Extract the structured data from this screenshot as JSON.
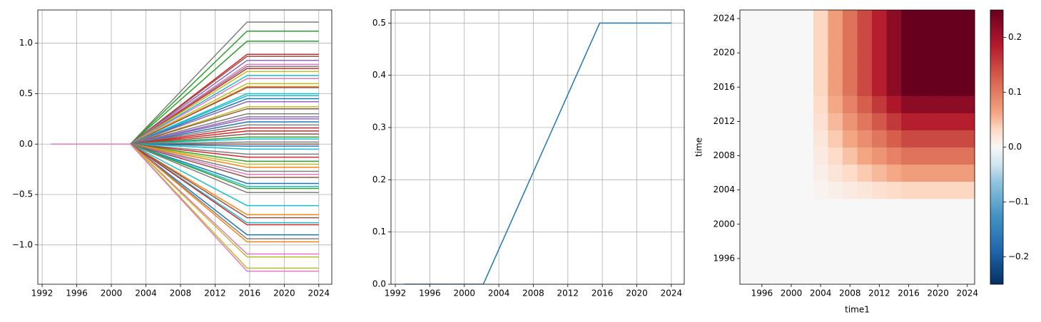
{
  "chart_data": [
    {
      "type": "line",
      "x": [
        1993,
        2002.2,
        2015.7,
        2024
      ],
      "xlim": [
        1991.5,
        2025.5
      ],
      "ylim": [
        -1.39,
        1.33
      ],
      "xticks": [
        1992,
        1996,
        2000,
        2004,
        2008,
        2012,
        2016,
        2020,
        2024
      ],
      "yticks": [
        {
          "value": -1.0,
          "label": "−1.0"
        },
        {
          "value": -0.5,
          "label": "−0.5"
        },
        {
          "value": 0,
          "label": "0.0"
        },
        {
          "value": 0.5,
          "label": "0.5"
        },
        {
          "value": 1.0,
          "label": "1.0"
        }
      ],
      "grid": true,
      "series": [
        {
          "color": "#7f7f7f",
          "values": [
            0,
            0,
            1.21,
            1.21
          ]
        },
        {
          "color": "#2ca02c",
          "values": [
            0,
            0,
            1.12,
            1.12
          ]
        },
        {
          "color": "#2ca02c",
          "values": [
            0,
            0,
            1.02,
            1.02
          ]
        },
        {
          "color": "#d62728",
          "values": [
            0,
            0,
            0.89,
            0.89
          ]
        },
        {
          "color": "#8c564b",
          "values": [
            0,
            0,
            0.87,
            0.87
          ]
        },
        {
          "color": "#9467bd",
          "values": [
            0,
            0,
            0.83,
            0.83
          ]
        },
        {
          "color": "#e377c2",
          "values": [
            0,
            0,
            0.79,
            0.79
          ]
        },
        {
          "color": "#7f7f7f",
          "values": [
            0,
            0,
            0.77,
            0.77
          ]
        },
        {
          "color": "#d62728",
          "values": [
            0,
            0,
            0.75,
            0.75
          ]
        },
        {
          "color": "#bcbd22",
          "values": [
            0,
            0,
            0.72,
            0.72
          ]
        },
        {
          "color": "#17becf",
          "values": [
            0,
            0,
            0.68,
            0.68
          ]
        },
        {
          "color": "#e377c2",
          "values": [
            0,
            0,
            0.65,
            0.65
          ]
        },
        {
          "color": "#bcbd22",
          "values": [
            0,
            0,
            0.6,
            0.6
          ]
        },
        {
          "color": "#ff7f0e",
          "values": [
            0,
            0,
            0.57,
            0.57
          ]
        },
        {
          "color": "#8c564b",
          "values": [
            0,
            0,
            0.56,
            0.56
          ]
        },
        {
          "color": "#17becf",
          "values": [
            0,
            0,
            0.5,
            0.5
          ]
        },
        {
          "color": "#17becf",
          "values": [
            0,
            0,
            0.48,
            0.48
          ]
        },
        {
          "color": "#1f77b4",
          "values": [
            0,
            0,
            0.45,
            0.45
          ]
        },
        {
          "color": "#9467bd",
          "values": [
            0,
            0,
            0.42,
            0.42
          ]
        },
        {
          "color": "#bcbd22",
          "values": [
            0,
            0,
            0.37,
            0.37
          ]
        },
        {
          "color": "#8c564b",
          "values": [
            0,
            0,
            0.35,
            0.35
          ]
        },
        {
          "color": "#7f7f7f",
          "values": [
            0,
            0,
            0.3,
            0.3
          ]
        },
        {
          "color": "#9467bd",
          "values": [
            0,
            0,
            0.27,
            0.27
          ]
        },
        {
          "color": "#9467bd",
          "values": [
            0,
            0,
            0.25,
            0.25
          ]
        },
        {
          "color": "#1f77b4",
          "values": [
            0,
            0,
            0.22,
            0.22
          ]
        },
        {
          "color": "#7f7f7f",
          "values": [
            0,
            0,
            0.19,
            0.19
          ]
        },
        {
          "color": "#d62728",
          "values": [
            0,
            0,
            0.16,
            0.16
          ]
        },
        {
          "color": "#d62728",
          "values": [
            0,
            0,
            0.13,
            0.13
          ]
        },
        {
          "color": "#8c564b",
          "values": [
            0,
            0,
            0.1,
            0.1
          ]
        },
        {
          "color": "#2ca02c",
          "values": [
            0,
            0,
            0.07,
            0.07
          ]
        },
        {
          "color": "#17becf",
          "values": [
            0,
            0,
            0.05,
            0.05
          ]
        },
        {
          "color": "#7f7f7f",
          "values": [
            0,
            0,
            0.02,
            0.02
          ]
        },
        {
          "color": "#8c564b",
          "values": [
            0,
            0,
            0,
            0
          ]
        },
        {
          "color": "#1f77b4",
          "values": [
            0,
            0,
            -0.02,
            -0.02
          ]
        },
        {
          "color": "#17becf",
          "values": [
            0,
            0,
            -0.05,
            -0.05
          ]
        },
        {
          "color": "#7f7f7f",
          "values": [
            0,
            0,
            -0.1,
            -0.1
          ]
        },
        {
          "color": "#d62728",
          "values": [
            0,
            0,
            -0.13,
            -0.13
          ]
        },
        {
          "color": "#2ca02c",
          "values": [
            0,
            0,
            -0.17,
            -0.17
          ]
        },
        {
          "color": "#bcbd22",
          "values": [
            0,
            0,
            -0.2,
            -0.2
          ]
        },
        {
          "color": "#ff7f0e",
          "values": [
            0,
            0,
            -0.23,
            -0.23
          ]
        },
        {
          "color": "#7f7f7f",
          "values": [
            0,
            0,
            -0.27,
            -0.27
          ]
        },
        {
          "color": "#e377c2",
          "values": [
            0,
            0,
            -0.3,
            -0.3
          ]
        },
        {
          "color": "#8c564b",
          "values": [
            0,
            0,
            -0.33,
            -0.33
          ]
        },
        {
          "color": "#1f77b4",
          "values": [
            0,
            0,
            -0.39,
            -0.39
          ]
        },
        {
          "color": "#17becf",
          "values": [
            0,
            0,
            -0.42,
            -0.42
          ]
        },
        {
          "color": "#2ca02c",
          "values": [
            0,
            0,
            -0.44,
            -0.44
          ]
        },
        {
          "color": "#7f7f7f",
          "values": [
            0,
            0,
            -0.48,
            -0.48
          ]
        },
        {
          "color": "#17becf",
          "values": [
            0,
            0,
            -0.61,
            -0.61
          ]
        },
        {
          "color": "#ff7f0e",
          "values": [
            0,
            0,
            -0.7,
            -0.7
          ]
        },
        {
          "color": "#8c564b",
          "values": [
            0,
            0,
            -0.73,
            -0.73
          ]
        },
        {
          "color": "#17becf",
          "values": [
            0,
            0,
            -0.78,
            -0.78
          ]
        },
        {
          "color": "#d62728",
          "values": [
            0,
            0,
            -0.8,
            -0.8
          ]
        },
        {
          "color": "#1f77b4",
          "values": [
            0,
            0,
            -0.9,
            -0.9
          ]
        },
        {
          "color": "#7f7f7f",
          "values": [
            0,
            0,
            -0.94,
            -0.94
          ]
        },
        {
          "color": "#ff7f0e",
          "values": [
            0,
            0,
            -0.97,
            -0.97
          ]
        },
        {
          "color": "#e377c2",
          "values": [
            0,
            0,
            -1.09,
            -1.09
          ]
        },
        {
          "color": "#bcbd22",
          "values": [
            0,
            0,
            -1.12,
            -1.12
          ]
        },
        {
          "color": "#bcbd22",
          "values": [
            0,
            0,
            -1.23,
            -1.23
          ]
        },
        {
          "color": "#e377c2",
          "values": [
            0,
            0,
            -1.26,
            -1.26
          ]
        }
      ]
    },
    {
      "type": "line",
      "x": [
        1993,
        2002.2,
        2015.7,
        2024
      ],
      "xlim": [
        1991.5,
        2025.5
      ],
      "ylim": [
        0,
        0.525
      ],
      "xticks": [
        1992,
        1996,
        2000,
        2004,
        2008,
        2012,
        2016,
        2020,
        2024
      ],
      "yticks": [
        {
          "value": 0,
          "label": "0.0"
        },
        {
          "value": 0.1,
          "label": "0.1"
        },
        {
          "value": 0.2,
          "label": "0.2"
        },
        {
          "value": 0.3,
          "label": "0.3"
        },
        {
          "value": 0.4,
          "label": "0.4"
        },
        {
          "value": 0.5,
          "label": "0.5"
        }
      ],
      "grid": true,
      "series": [
        {
          "color": "#1f77b4",
          "values": [
            0,
            0,
            0.5,
            0.5
          ]
        }
      ]
    },
    {
      "type": "heatmap",
      "x_label": "time1",
      "y_label": "time",
      "colormap": "RdBu_r",
      "x": [
        1994,
        1996,
        1998,
        2000,
        2002,
        2004,
        2006,
        2008,
        2010,
        2012,
        2014,
        2016,
        2018,
        2020,
        2022,
        2024
      ],
      "y": [
        1994,
        1996,
        1998,
        2000,
        2002,
        2004,
        2006,
        2008,
        2010,
        2012,
        2014,
        2016,
        2018,
        2020,
        2022,
        2024
      ],
      "xlim": [
        1993,
        2025
      ],
      "ylim": [
        1993,
        2025
      ],
      "xticks": [
        1996,
        2000,
        2004,
        2008,
        2012,
        2016,
        2020,
        2024
      ],
      "yticks": [
        1996,
        2000,
        2004,
        2008,
        2012,
        2016,
        2020,
        2024
      ],
      "zlim": [
        -0.25,
        0.25
      ],
      "zticks": [
        {
          "value": -0.2,
          "label": "−0.2"
        },
        {
          "value": -0.1,
          "label": "−0.1"
        },
        {
          "value": 0,
          "label": "0.0"
        },
        {
          "value": 0.1,
          "label": "0.1"
        },
        {
          "value": 0.2,
          "label": "0.2"
        }
      ],
      "z": [
        [
          0,
          0,
          0,
          0,
          0,
          0,
          0,
          0,
          0,
          0,
          0,
          0,
          0,
          0,
          0,
          0
        ],
        [
          0,
          0,
          0,
          0,
          0,
          0,
          0,
          0,
          0,
          0,
          0,
          0,
          0,
          0,
          0,
          0
        ],
        [
          0,
          0,
          0,
          0,
          0,
          0,
          0,
          0,
          0,
          0,
          0,
          0,
          0,
          0,
          0,
          0
        ],
        [
          0,
          0,
          0,
          0,
          0,
          0,
          0,
          0,
          0,
          0,
          0,
          0,
          0,
          0,
          0,
          0
        ],
        [
          0,
          0,
          0,
          0,
          0,
          0,
          0,
          0,
          0,
          0,
          0,
          0,
          0,
          0,
          0,
          0
        ],
        [
          0,
          0,
          0,
          0,
          0,
          0.004,
          0.009,
          0.014,
          0.019,
          0.024,
          0.029,
          0.033,
          0.033,
          0.033,
          0.033,
          0.033
        ],
        [
          0,
          0,
          0,
          0,
          0,
          0.009,
          0.02,
          0.03,
          0.041,
          0.051,
          0.061,
          0.07,
          0.07,
          0.07,
          0.07,
          0.07
        ],
        [
          0,
          0,
          0,
          0,
          0,
          0.014,
          0.03,
          0.046,
          0.062,
          0.078,
          0.094,
          0.108,
          0.108,
          0.108,
          0.108,
          0.108
        ],
        [
          0,
          0,
          0,
          0,
          0,
          0.019,
          0.041,
          0.062,
          0.084,
          0.105,
          0.126,
          0.145,
          0.145,
          0.145,
          0.145,
          0.145
        ],
        [
          0,
          0,
          0,
          0,
          0,
          0.024,
          0.051,
          0.078,
          0.105,
          0.132,
          0.159,
          0.182,
          0.182,
          0.182,
          0.182,
          0.182
        ],
        [
          0,
          0,
          0,
          0,
          0,
          0.029,
          0.061,
          0.094,
          0.126,
          0.159,
          0.191,
          0.219,
          0.219,
          0.219,
          0.219,
          0.219
        ],
        [
          0,
          0,
          0,
          0,
          0,
          0.033,
          0.07,
          0.108,
          0.145,
          0.182,
          0.219,
          0.25,
          0.25,
          0.25,
          0.25,
          0.25
        ],
        [
          0,
          0,
          0,
          0,
          0,
          0.033,
          0.07,
          0.108,
          0.145,
          0.182,
          0.219,
          0.25,
          0.25,
          0.25,
          0.25,
          0.25
        ],
        [
          0,
          0,
          0,
          0,
          0,
          0.033,
          0.07,
          0.108,
          0.145,
          0.182,
          0.219,
          0.25,
          0.25,
          0.25,
          0.25,
          0.25
        ],
        [
          0,
          0,
          0,
          0,
          0,
          0.033,
          0.07,
          0.108,
          0.145,
          0.182,
          0.219,
          0.25,
          0.25,
          0.25,
          0.25,
          0.25
        ],
        [
          0,
          0,
          0,
          0,
          0,
          0.033,
          0.07,
          0.108,
          0.145,
          0.182,
          0.219,
          0.25,
          0.25,
          0.25,
          0.25,
          0.25
        ]
      ]
    }
  ]
}
